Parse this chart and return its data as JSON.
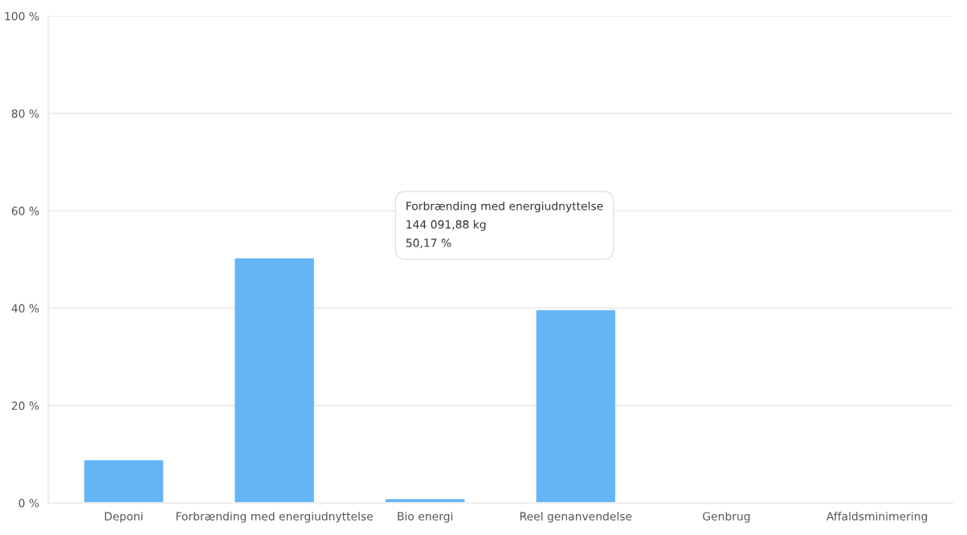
{
  "chart_data": {
    "type": "bar",
    "categories": [
      "Deponi",
      "Forbrænding med energiudnyttelse",
      "Bio energi",
      "Reel genanvendelse",
      "Genbrug",
      "Affaldsminimering"
    ],
    "values": [
      8.7,
      50.17,
      0.7,
      39.5,
      0,
      0
    ],
    "color": "#64b5f6",
    "ylim": [
      0,
      100
    ],
    "yticks": [
      {
        "value": 0,
        "label": "0 %"
      },
      {
        "value": 20,
        "label": "20 %"
      },
      {
        "value": 40,
        "label": "40 %"
      },
      {
        "value": 60,
        "label": "60 %"
      },
      {
        "value": 80,
        "label": "80 %"
      },
      {
        "value": 100,
        "label": "100 %"
      }
    ],
    "grid": "y",
    "annotations": [
      "Forbrænding med energiudnyttelse\n144 091,88 kg\n50,17 %"
    ]
  }
}
